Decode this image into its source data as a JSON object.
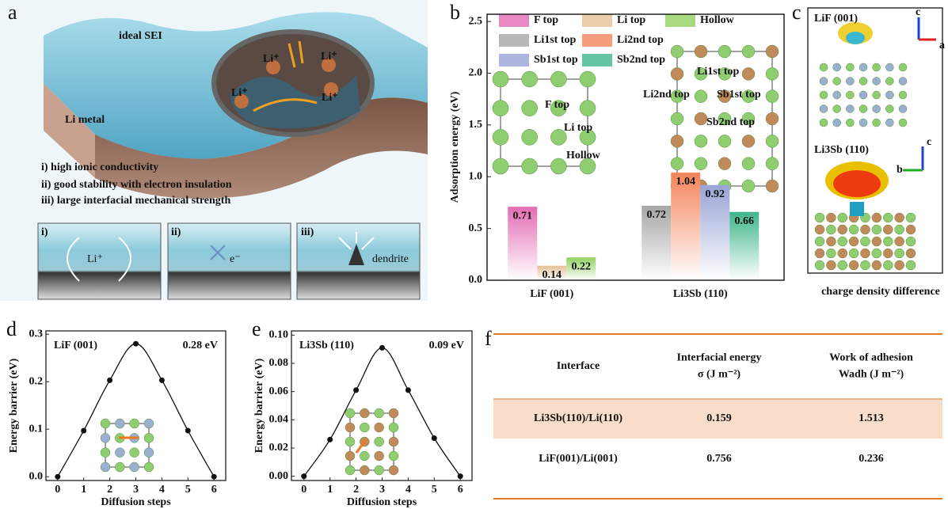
{
  "panel_labels": [
    "a",
    "b",
    "c",
    "d",
    "e",
    "f"
  ],
  "panel_a": {
    "surface_labels": [
      "ideal SEI",
      "Li metal"
    ],
    "ion_labels": [
      "Li⁺",
      "Li⁺",
      "Li⁺",
      "Li⁺"
    ],
    "properties": [
      "i) high ionic conductivity",
      "ii) good stability with electron insulation",
      "iii) large interfacial mechanical strength"
    ],
    "subpanels": [
      {
        "label": "i)",
        "text": "Li⁺"
      },
      {
        "label": "ii)",
        "text": "e⁻"
      },
      {
        "label": "iii)",
        "text": "dendrite"
      }
    ]
  },
  "panel_c": {
    "labels": [
      "LiF (001)",
      "Li3Sb (110)"
    ],
    "axes": [
      [
        "c",
        "a"
      ],
      [
        "c",
        "b"
      ]
    ],
    "caption": "charge density difference"
  },
  "chart_data": [
    {
      "type": "bar",
      "ylabel": "Adsorption energy (eV)",
      "categories": [
        "LiF (001)",
        "Li3Sb (110)"
      ],
      "ylim": [
        0,
        2.57
      ],
      "yticks": [
        {
          "value": 0,
          "label": "0.0"
        },
        {
          "value": 0.5,
          "label": "0.5"
        },
        {
          "value": 1,
          "label": "1.0"
        },
        {
          "value": 1.5,
          "label": "1.5"
        },
        {
          "value": 2,
          "label": "2.0"
        },
        {
          "value": 2.5,
          "label": "2.5"
        }
      ],
      "series": [
        {
          "name": "F top",
          "color": "#e46cb4",
          "values": [
            0.71,
            null
          ]
        },
        {
          "name": "Li top",
          "color": "#e6bf96",
          "values": [
            0.14,
            null
          ]
        },
        {
          "name": "Hollow",
          "color": "#92d060",
          "values": [
            0.22,
            null
          ]
        },
        {
          "name": "Li1st top",
          "color": "#a6a6a6",
          "values": [
            null,
            0.72
          ]
        },
        {
          "name": "Li2nd top",
          "color": "#f4845a",
          "values": [
            null,
            1.04
          ]
        },
        {
          "name": "Sb1st top",
          "color": "#98a4d6",
          "values": [
            null,
            0.92
          ]
        },
        {
          "name": "Sb2nd top",
          "color": "#3eb58a",
          "values": [
            null,
            0.66
          ]
        }
      ],
      "annotations": [
        "F top",
        "Li top",
        "Hollow",
        "Li1st top",
        "Li2nd top",
        "Sb1st top",
        "Sb2nd top"
      ]
    },
    {
      "type": "line",
      "xlabel": "Diffusion steps",
      "ylabel": "Energy barrier (eV)",
      "x": [
        0,
        1,
        2,
        3,
        4,
        5,
        6
      ],
      "values": [
        0,
        0.097,
        0.203,
        0.28,
        0.203,
        0.097,
        0
      ],
      "xlim": [
        -0.45,
        6.45
      ],
      "xticks": [
        0,
        1,
        2,
        3,
        4,
        5,
        6
      ],
      "ylim": [
        -0.008,
        0.307
      ],
      "yticks": [
        {
          "value": 0,
          "label": "0.0"
        },
        {
          "value": 0.1,
          "label": "0.1"
        },
        {
          "value": 0.2,
          "label": "0.2"
        },
        {
          "value": 0.3,
          "label": "0.3"
        }
      ],
      "annotations": [
        "LiF (001)",
        "0.28 eV"
      ]
    },
    {
      "type": "line",
      "xlabel": "Diffusion steps",
      "ylabel": "Energy barrier (eV)",
      "x": [
        0,
        1,
        2,
        3,
        4,
        5,
        6
      ],
      "values": [
        0,
        0.026,
        0.061,
        0.091,
        0.061,
        0.027,
        0
      ],
      "xlim": [
        -0.48,
        6.45
      ],
      "xticks": [
        0,
        1,
        2,
        3,
        4,
        5,
        6
      ],
      "ylim": [
        -0.003,
        0.103
      ],
      "yticks": [
        {
          "value": 0,
          "label": "0.00"
        },
        {
          "value": 0.02,
          "label": "0.02"
        },
        {
          "value": 0.04,
          "label": "0.04"
        },
        {
          "value": 0.06,
          "label": "0.06"
        },
        {
          "value": 0.08,
          "label": "0.08"
        },
        {
          "value": 0.1,
          "label": "0.10"
        }
      ],
      "annotations": [
        "Li3Sb (110)",
        "0.09 eV"
      ]
    }
  ],
  "table": {
    "header": [
      [
        "Interface"
      ],
      [
        "Interfacial energy",
        "σ (J m⁻²)"
      ],
      [
        "Work of adhesion",
        "Wadh (J m⁻²)"
      ]
    ],
    "rows": [
      [
        "Li3Sb(110)/Li(110)",
        0.159,
        1.513
      ],
      [
        "LiF(001)/Li(001)",
        0.756,
        0.236
      ]
    ]
  }
}
